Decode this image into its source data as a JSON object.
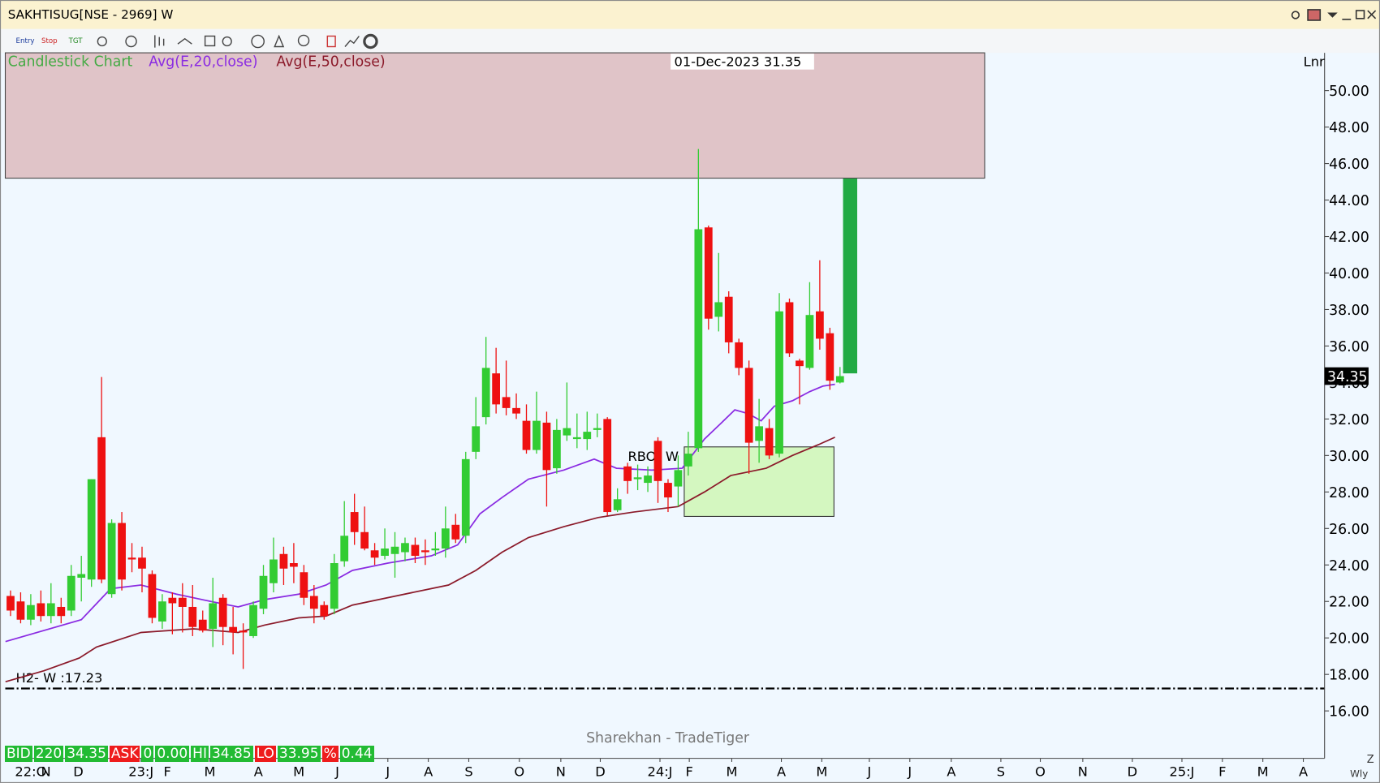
{
  "window_title": "SAKHTISUG[NSE - 2969] W",
  "toolbar": [
    "Entry",
    "Stop",
    "TGT"
  ],
  "watermark": "Sharekhan - TradeTiger",
  "axis_mode": "Lnr",
  "period_label": "Wly",
  "zoom_label": "Z",
  "status": [
    {
      "label": "BID",
      "values": [
        "220",
        "34.35"
      ]
    },
    {
      "label": "ASK",
      "values": [
        "0",
        "0.00"
      ]
    },
    {
      "label": "HI",
      "values": [
        "34.85"
      ]
    },
    {
      "label": "LO",
      "values": [
        "33.95"
      ]
    },
    {
      "label": "%",
      "values": [
        "0.44"
      ]
    }
  ],
  "chart_data": {
    "type": "candlestick",
    "cursor_label": "01-Dec-2023 31.35",
    "candles": {
      "name": "Candlestick Chart",
      "up_color": "#33cc33",
      "down_color": "#ee1111",
      "legend_color": "#44aa44",
      "x": [
        0,
        1,
        2,
        3,
        4,
        5,
        6,
        7,
        8,
        9,
        10,
        11,
        12,
        13,
        14,
        15,
        16,
        17,
        18,
        19,
        20,
        21,
        22,
        23,
        24,
        25,
        26,
        27,
        28,
        29,
        30,
        31,
        32,
        33,
        34,
        35,
        36,
        37,
        38,
        39,
        40,
        41,
        42,
        43,
        44,
        45,
        46,
        47,
        48,
        49,
        50,
        51,
        52,
        53,
        54,
        55,
        56,
        57,
        58,
        59,
        60,
        61,
        62,
        63,
        64,
        65,
        66,
        67,
        68,
        69,
        70,
        71,
        72,
        73,
        74,
        75,
        76,
        77,
        78,
        79,
        80,
        81,
        82
      ],
      "open": [
        22.3,
        22,
        21,
        21.9,
        21.2,
        21.7,
        21.5,
        23.3,
        23.2,
        31,
        22.4,
        26.3,
        24.4,
        24.4,
        23.5,
        20.9,
        22.2,
        22.2,
        21.7,
        21,
        20.5,
        22.2,
        20.6,
        20.4,
        20.1,
        21.6,
        23,
        24.6,
        24.1,
        23.6,
        22.3,
        21.8,
        21.6,
        24.2,
        26.9,
        25.8,
        24.8,
        24.5,
        24.6,
        24.7,
        25.1,
        24.8,
        24.8,
        24.9,
        26.2,
        25.6,
        30.2,
        32.1,
        34.5,
        33.2,
        32.6,
        31.9,
        30.3,
        31.8,
        29.3,
        31.1,
        30.9,
        30.9,
        31.4,
        32,
        27,
        29.4,
        28.7,
        28.5,
        30.8,
        28.5,
        28.3,
        29.4,
        30.4,
        42.5,
        37.6,
        38.7,
        36.2,
        34.8,
        30.8,
        31.5,
        30.1,
        38.4,
        35.2,
        34.8,
        37.9,
        36.7,
        34
      ],
      "high": [
        22.6,
        22.5,
        22.4,
        22.6,
        23,
        22.2,
        24,
        24.5,
        28.7,
        34.3,
        26.5,
        26.9,
        25.2,
        25,
        23.7,
        22.4,
        22.5,
        23,
        22.9,
        21.5,
        23.3,
        22.4,
        21.7,
        20.8,
        22,
        24,
        25.5,
        25,
        25.2,
        24,
        22.9,
        22,
        24.6,
        27.5,
        27.9,
        27.2,
        25.2,
        26,
        25.8,
        25.5,
        25.5,
        25.4,
        25.8,
        27.2,
        26.8,
        30.2,
        33.2,
        36.5,
        35.9,
        35.2,
        33.4,
        32.8,
        33.5,
        32.4,
        32,
        34,
        32.3,
        32.4,
        32.3,
        32.1,
        28.2,
        29.6,
        29.5,
        29.4,
        31,
        28.7,
        30,
        31.3,
        46.8,
        42.6,
        41.1,
        39,
        36.4,
        35.2,
        33.1,
        32,
        38.9,
        38.6,
        35.3,
        39.5,
        40.7,
        37,
        34.85
      ],
      "low": [
        21.2,
        20.8,
        20.7,
        20.9,
        20.8,
        20.8,
        21.2,
        22,
        22.8,
        23,
        22.2,
        22.6,
        23.6,
        22.5,
        20.8,
        20.5,
        20.2,
        20.3,
        20.1,
        20.3,
        19.5,
        19.6,
        19.1,
        18.3,
        20,
        21.3,
        22.5,
        22.9,
        23,
        21.8,
        20.8,
        21,
        21.3,
        23.9,
        25.1,
        24.8,
        24,
        24.3,
        23.3,
        24.2,
        24.1,
        24,
        24.5,
        24.4,
        25.2,
        25.2,
        29.8,
        31.7,
        32.3,
        32.2,
        32,
        30.1,
        30.1,
        27.2,
        29,
        30.8,
        30.4,
        30.3,
        31,
        26.7,
        26.9,
        27.9,
        28.1,
        28,
        27.4,
        26.9,
        27.2,
        28.9,
        30.2,
        36.9,
        36.8,
        35.6,
        34.4,
        29,
        29.6,
        29.8,
        29.9,
        35.4,
        32.8,
        34.7,
        35.8,
        33.6,
        33.95
      ],
      "close": [
        21.5,
        21,
        21.8,
        21.2,
        21.9,
        21.2,
        23.4,
        23.5,
        28.7,
        23.2,
        26.3,
        23.2,
        24.3,
        23.8,
        21.1,
        22,
        21.9,
        21.7,
        20.6,
        20.4,
        21.9,
        20.6,
        20.3,
        20.3,
        21.8,
        23.4,
        24.3,
        23.8,
        23.9,
        22.2,
        21.6,
        21.2,
        24.1,
        25.6,
        25.8,
        24.9,
        24.4,
        24.9,
        25,
        25.2,
        24.5,
        24.7,
        24.9,
        26,
        25.4,
        29.8,
        31.6,
        34.8,
        32.8,
        32.6,
        32.3,
        30.3,
        31.9,
        29.2,
        31.4,
        31.5,
        31,
        31.3,
        31.5,
        26.9,
        27.6,
        28.6,
        28.8,
        28.9,
        28.6,
        27.7,
        29.2,
        30.1,
        42.4,
        37.5,
        38.4,
        36.2,
        34.8,
        30.7,
        31.6,
        30,
        37.9,
        35.6,
        34.9,
        37.7,
        36.4,
        34.1,
        34.35
      ]
    },
    "series": [
      {
        "name": "Avg(E,20,close)",
        "color": "#8a2be2",
        "x": [
          -0.5,
          7,
          9.9,
          12.9,
          16.4,
          19.8,
          22.5,
          25.1,
          28.5,
          31.2,
          33.8,
          37.3,
          41.6,
          44.2,
          46.4,
          48.6,
          51.2,
          54.7,
          57.7,
          59.9,
          63.4,
          66.4,
          68.6,
          70.3,
          71.6,
          72.9,
          74.2,
          75.5,
          77.3,
          79,
          80.3,
          81.5
        ],
        "values": [
          19.8,
          21,
          22.7,
          22.9,
          22.4,
          22,
          21.7,
          22.1,
          22.4,
          22.9,
          23.7,
          24.1,
          24.5,
          25.1,
          26.8,
          27.7,
          28.7,
          29.2,
          29.8,
          29.3,
          29.2,
          29.3,
          30.9,
          31.8,
          32.5,
          32.3,
          31.9,
          32.7,
          33,
          33.5,
          33.8,
          33.9
        ]
      },
      {
        "name": "Avg(E,50,close)",
        "color": "#8b1a2a",
        "x": [
          -0.5,
          3.3,
          6.8,
          8.5,
          12.9,
          18.1,
          22.5,
          25.1,
          28.5,
          31.2,
          33.8,
          38.1,
          43.3,
          46,
          48.6,
          51.2,
          54.7,
          58.1,
          61.6,
          66,
          68.6,
          71.2,
          74.7,
          77.3,
          79.9,
          81.5
        ],
        "values": [
          17.6,
          18.2,
          18.9,
          19.5,
          20.3,
          20.5,
          20.3,
          20.7,
          21.1,
          21.2,
          21.8,
          22.3,
          22.9,
          23.7,
          24.7,
          25.5,
          26.1,
          26.6,
          26.9,
          27.2,
          28,
          28.9,
          29.3,
          30,
          30.6,
          31
        ]
      }
    ],
    "last_value": 34.35,
    "zones": [
      {
        "x": [
          -0.52,
          96.3
        ],
        "y": [
          45.2,
          52.07
        ],
        "color": "#e0c4c8"
      },
      {
        "label": "RBO- W",
        "x": [
          66.6,
          81.4
        ],
        "y": [
          26.66,
          30.47
        ],
        "color": "#d4f7c0"
      },
      {
        "x": [
          82.3,
          83.7
        ],
        "y": [
          34.5,
          45.18
        ],
        "color": "#22aa44"
      }
    ],
    "level": {
      "label": "H2- W :17.23",
      "value": 17.23
    },
    "xlim": [
      -0.52,
      129.9
    ],
    "ylim": [
      13.4,
      52.07
    ],
    "yticks": [
      {
        "value": 16,
        "label": "16.00"
      },
      {
        "value": 18,
        "label": "18.00"
      },
      {
        "value": 20,
        "label": "20.00"
      },
      {
        "value": 22,
        "label": "22.00"
      },
      {
        "value": 24,
        "label": "24.00"
      },
      {
        "value": 26,
        "label": "26.00"
      },
      {
        "value": 28,
        "label": "28.00"
      },
      {
        "value": 30,
        "label": "30.00"
      },
      {
        "value": 32,
        "label": "32.00"
      },
      {
        "value": 34,
        "label": "34.00"
      },
      {
        "value": 36,
        "label": "36.00"
      },
      {
        "value": 38,
        "label": "38.00"
      },
      {
        "value": 40,
        "label": "40.00"
      },
      {
        "value": 42,
        "label": "42.00"
      },
      {
        "value": 44,
        "label": "44.00"
      },
      {
        "value": 46,
        "label": "46.00"
      },
      {
        "value": 48,
        "label": "48.00"
      },
      {
        "value": 50,
        "label": "50.00"
      }
    ],
    "xticks": [
      {
        "value": 2,
        "label": "22:O"
      },
      {
        "value": 3.5,
        "label": "N"
      },
      {
        "value": 6.7,
        "label": "D"
      },
      {
        "value": 12.9,
        "label": "23:J"
      },
      {
        "value": 15.5,
        "label": "F"
      },
      {
        "value": 19.7,
        "label": "M"
      },
      {
        "value": 24.5,
        "label": "A"
      },
      {
        "value": 28.5,
        "label": "M"
      },
      {
        "value": 32.3,
        "label": "J"
      },
      {
        "value": 37.3,
        "label": "J"
      },
      {
        "value": 41.3,
        "label": "A"
      },
      {
        "value": 45.3,
        "label": "S"
      },
      {
        "value": 50.3,
        "label": "O"
      },
      {
        "value": 54.4,
        "label": "N"
      },
      {
        "value": 58.3,
        "label": "D"
      },
      {
        "value": 64.2,
        "label": "24:J"
      },
      {
        "value": 67.1,
        "label": "F"
      },
      {
        "value": 71.3,
        "label": "M"
      },
      {
        "value": 76.2,
        "label": "A"
      },
      {
        "value": 80.2,
        "label": "M"
      },
      {
        "value": 84.9,
        "label": "J"
      },
      {
        "value": 88.9,
        "label": "J"
      },
      {
        "value": 93,
        "label": "A"
      },
      {
        "value": 97.9,
        "label": "S"
      },
      {
        "value": 101.8,
        "label": "O"
      },
      {
        "value": 106,
        "label": "N"
      },
      {
        "value": 110.9,
        "label": "D"
      },
      {
        "value": 115.8,
        "label": "25:J"
      },
      {
        "value": 119.8,
        "label": "F"
      },
      {
        "value": 123.8,
        "label": "M"
      },
      {
        "value": 127.8,
        "label": "A"
      }
    ]
  }
}
